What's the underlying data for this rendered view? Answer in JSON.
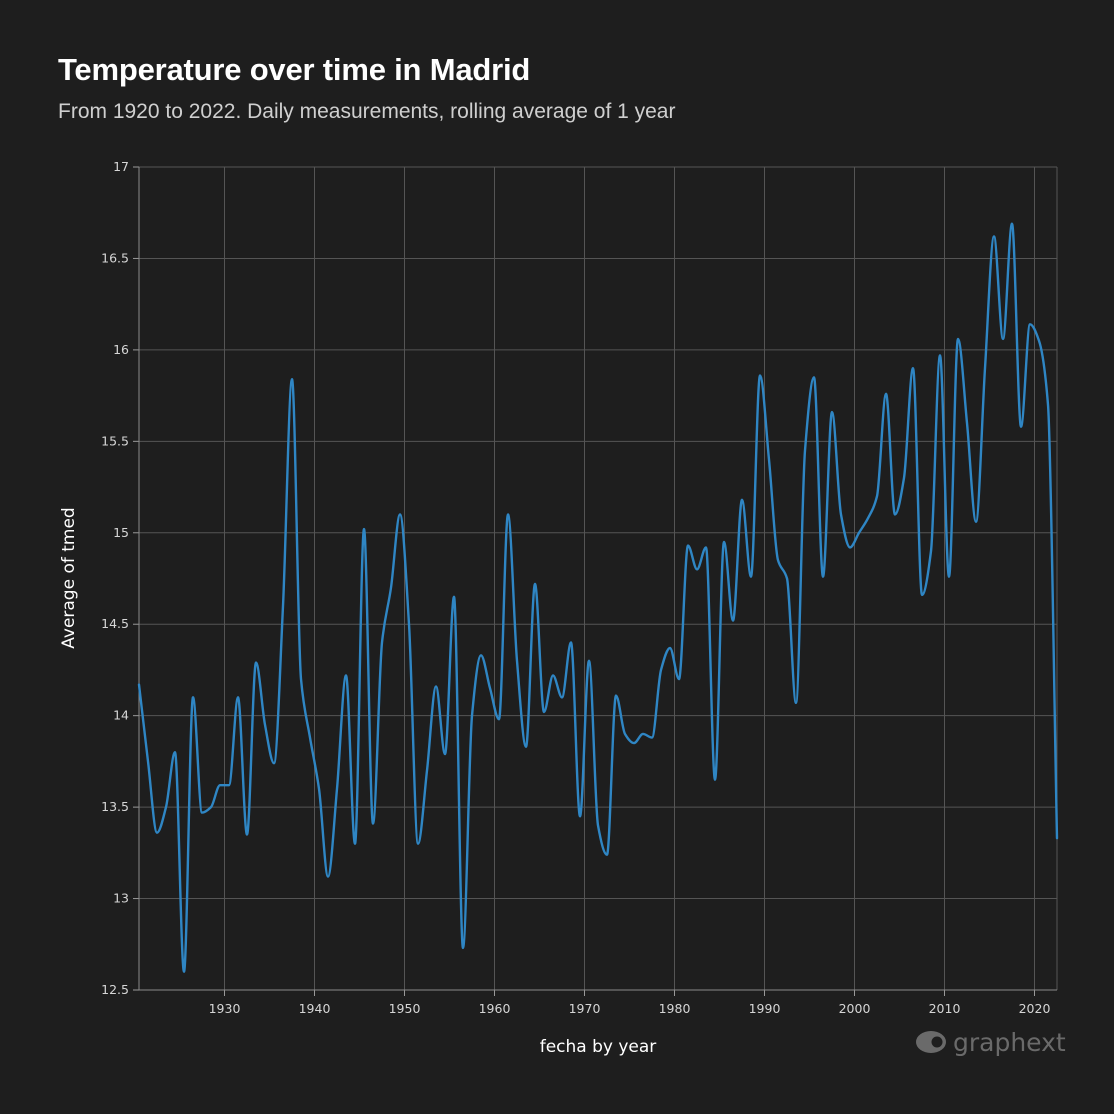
{
  "title": "Temperature over time in Madrid",
  "subtitle": "From 1920 to 2022. Daily measurements, rolling average of 1 year",
  "logo": {
    "text": "graphext"
  },
  "colors": {
    "background": "#1e1e1e",
    "line": "#2f86c4",
    "grid": "#555555",
    "text": "#ffffff"
  },
  "chart_data": {
    "type": "line",
    "title": "Temperature over time in Madrid",
    "subtitle": "From 1920 to 2022. Daily measurements, rolling average of 1 year",
    "xlabel": "fecha by year",
    "ylabel": "Average of tmed",
    "xlim": [
      1920.5,
      2022.5
    ],
    "ylim": [
      12.5,
      17
    ],
    "grid": true,
    "x_ticks": [
      1930,
      1940,
      1950,
      1960,
      1970,
      1980,
      1990,
      2000,
      2010,
      2020
    ],
    "x_tick_labels": [
      "1930",
      "1940",
      "1950",
      "1960",
      "1970",
      "1980",
      "1990",
      "2000",
      "2010",
      "2020"
    ],
    "y_ticks": [
      12.5,
      13,
      13.5,
      14,
      14.5,
      15,
      15.5,
      16,
      16.5,
      17
    ],
    "y_tick_labels": [
      "12.5",
      "13",
      "13.5",
      "14",
      "14.5",
      "15",
      "15.5",
      "16",
      "16.5",
      "17"
    ],
    "series": [
      {
        "name": "Average of tmed",
        "points": [
          [
            1920.5,
            14.17
          ],
          [
            1921.5,
            13.75
          ],
          [
            1922.5,
            13.36
          ],
          [
            1923.5,
            13.5
          ],
          [
            1924.5,
            13.8
          ],
          [
            1925.5,
            12.6
          ],
          [
            1926.5,
            14.1
          ],
          [
            1927.5,
            13.47
          ],
          [
            1928.5,
            13.5
          ],
          [
            1929.5,
            13.62
          ],
          [
            1930.5,
            13.62
          ],
          [
            1931.5,
            14.1
          ],
          [
            1932.5,
            13.35
          ],
          [
            1933.5,
            14.29
          ],
          [
            1934.5,
            13.95
          ],
          [
            1935.5,
            13.74
          ],
          [
            1936.5,
            14.6
          ],
          [
            1937.5,
            15.84
          ],
          [
            1938.5,
            14.2
          ],
          [
            1939.5,
            13.88
          ],
          [
            1940.5,
            13.6
          ],
          [
            1941.5,
            13.12
          ],
          [
            1942.5,
            13.6
          ],
          [
            1943.5,
            14.22
          ],
          [
            1944.5,
            13.3
          ],
          [
            1945.5,
            15.02
          ],
          [
            1946.5,
            13.41
          ],
          [
            1947.5,
            14.4
          ],
          [
            1948.5,
            14.7
          ],
          [
            1949.5,
            15.1
          ],
          [
            1950.5,
            14.5
          ],
          [
            1951.5,
            13.3
          ],
          [
            1952.5,
            13.7
          ],
          [
            1953.5,
            14.16
          ],
          [
            1954.5,
            13.79
          ],
          [
            1955.5,
            14.65
          ],
          [
            1956.5,
            12.73
          ],
          [
            1957.5,
            14.0
          ],
          [
            1958.5,
            14.33
          ],
          [
            1959.5,
            14.15
          ],
          [
            1960.5,
            13.98
          ],
          [
            1961.5,
            15.1
          ],
          [
            1962.5,
            14.3
          ],
          [
            1963.5,
            13.83
          ],
          [
            1964.5,
            14.72
          ],
          [
            1965.5,
            14.02
          ],
          [
            1966.5,
            14.22
          ],
          [
            1967.5,
            14.1
          ],
          [
            1968.5,
            14.4
          ],
          [
            1969.5,
            13.45
          ],
          [
            1970.5,
            14.3
          ],
          [
            1971.5,
            13.4
          ],
          [
            1972.5,
            13.24
          ],
          [
            1973.5,
            14.11
          ],
          [
            1974.5,
            13.9
          ],
          [
            1975.5,
            13.85
          ],
          [
            1976.5,
            13.9
          ],
          [
            1977.5,
            13.88
          ],
          [
            1978.5,
            14.25
          ],
          [
            1979.5,
            14.37
          ],
          [
            1980.5,
            14.2
          ],
          [
            1981.5,
            14.93
          ],
          [
            1982.5,
            14.8
          ],
          [
            1983.5,
            14.92
          ],
          [
            1984.5,
            13.65
          ],
          [
            1985.5,
            14.95
          ],
          [
            1986.5,
            14.52
          ],
          [
            1987.5,
            15.18
          ],
          [
            1988.5,
            14.76
          ],
          [
            1989.5,
            15.86
          ],
          [
            1990.5,
            15.4
          ],
          [
            1991.5,
            14.85
          ],
          [
            1992.5,
            14.75
          ],
          [
            1993.5,
            14.07
          ],
          [
            1994.5,
            15.45
          ],
          [
            1995.5,
            15.85
          ],
          [
            1996.5,
            14.76
          ],
          [
            1997.5,
            15.66
          ],
          [
            1998.5,
            15.1
          ],
          [
            1999.5,
            14.92
          ],
          [
            2000.5,
            15.0
          ],
          [
            2001.5,
            15.08
          ],
          [
            2002.5,
            15.2
          ],
          [
            2003.5,
            15.76
          ],
          [
            2004.5,
            15.1
          ],
          [
            2005.5,
            15.3
          ],
          [
            2006.5,
            15.9
          ],
          [
            2007.5,
            14.66
          ],
          [
            2008.5,
            14.9
          ],
          [
            2009.5,
            15.97
          ],
          [
            2010.5,
            14.76
          ],
          [
            2011.5,
            16.06
          ],
          [
            2012.5,
            15.6
          ],
          [
            2013.5,
            15.06
          ],
          [
            2014.5,
            15.9
          ],
          [
            2015.5,
            16.62
          ],
          [
            2016.5,
            16.06
          ],
          [
            2017.5,
            16.69
          ],
          [
            2018.5,
            15.58
          ],
          [
            2019.5,
            16.14
          ],
          [
            2020.5,
            16.05
          ],
          [
            2021.5,
            15.7
          ],
          [
            2022.5,
            13.33
          ]
        ]
      }
    ]
  }
}
